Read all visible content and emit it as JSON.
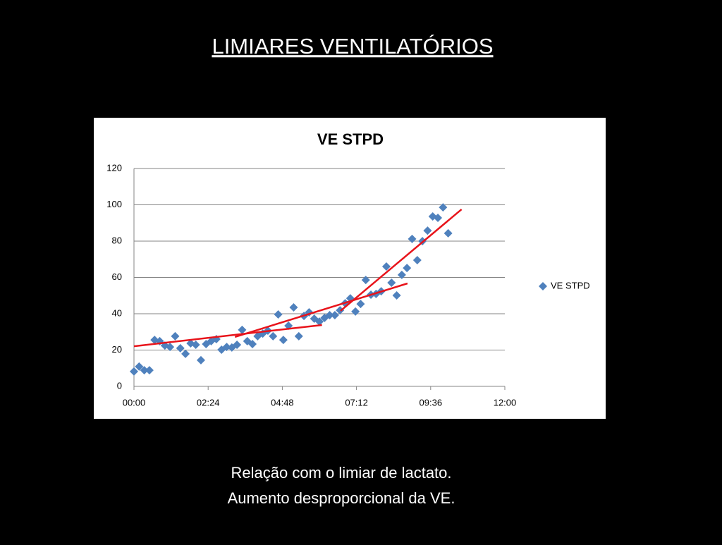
{
  "slide": {
    "title": "LIMIARES VENTILATÓRIOS",
    "caption": [
      "Relação com o limiar de lactato.",
      "Aumento desproporcional da VE."
    ]
  },
  "chart_data": {
    "type": "scatter",
    "title": "VE STPD",
    "x": [
      0,
      10,
      20,
      30,
      40,
      50,
      60,
      70,
      80,
      90,
      100,
      110,
      120,
      130,
      140,
      150,
      160,
      170,
      180,
      190,
      200,
      210,
      220,
      230,
      240,
      250,
      260,
      270,
      280,
      290,
      300,
      310,
      320,
      330,
      340,
      350,
      360,
      370,
      380,
      390,
      400,
      410,
      420,
      430,
      440,
      450,
      460,
      470,
      480,
      490,
      500,
      510,
      520,
      530,
      540,
      550,
      560,
      570,
      580,
      590,
      600,
      610
    ],
    "series": [
      {
        "name": "VE STPD",
        "color": "#4f81bd",
        "values": [
          8.2,
          10.9,
          8.9,
          8.9,
          25.6,
          24.9,
          22.5,
          21.7,
          27.6,
          21.0,
          17.9,
          23.7,
          22.9,
          14.4,
          23.3,
          24.9,
          26.0,
          20.2,
          21.7,
          21.4,
          22.9,
          31.1,
          24.9,
          23.3,
          27.6,
          29.1,
          30.7,
          27.6,
          39.6,
          25.6,
          33.4,
          43.5,
          27.6,
          38.8,
          40.8,
          37.3,
          35.7,
          37.7,
          39.2,
          39.2,
          41.9,
          45.8,
          48.5,
          41.2,
          45.4,
          58.6,
          50.5,
          50.9,
          52.4,
          66.0,
          57.1,
          50.1,
          61.4,
          65.2,
          81.2,
          69.5,
          80.0,
          85.8,
          93.6,
          92.8,
          98.6,
          84.3
        ]
      }
    ],
    "trend_lines": [
      {
        "color": "#e8141b",
        "x": [
          0,
          365
        ],
        "values": [
          22.1,
          33.8
        ]
      },
      {
        "color": "#e8141b",
        "x": [
          196,
          531
        ],
        "values": [
          27.2,
          56.7
        ]
      },
      {
        "color": "#e8141b",
        "x": [
          401,
          636
        ],
        "values": [
          41.6,
          97.5
        ]
      }
    ],
    "xlim": [
      0,
      720
    ],
    "xticks": [
      {
        "value": 0,
        "label": "00:00"
      },
      {
        "value": 144,
        "label": "02:24"
      },
      {
        "value": 288,
        "label": "04:48"
      },
      {
        "value": 432,
        "label": "07:12"
      },
      {
        "value": 576,
        "label": "09:36"
      },
      {
        "value": 720,
        "label": "12:00"
      }
    ],
    "ylim": [
      0,
      120
    ],
    "yticks": [
      0,
      20,
      40,
      60,
      80,
      100,
      120
    ],
    "grid": true,
    "legend": "right"
  }
}
